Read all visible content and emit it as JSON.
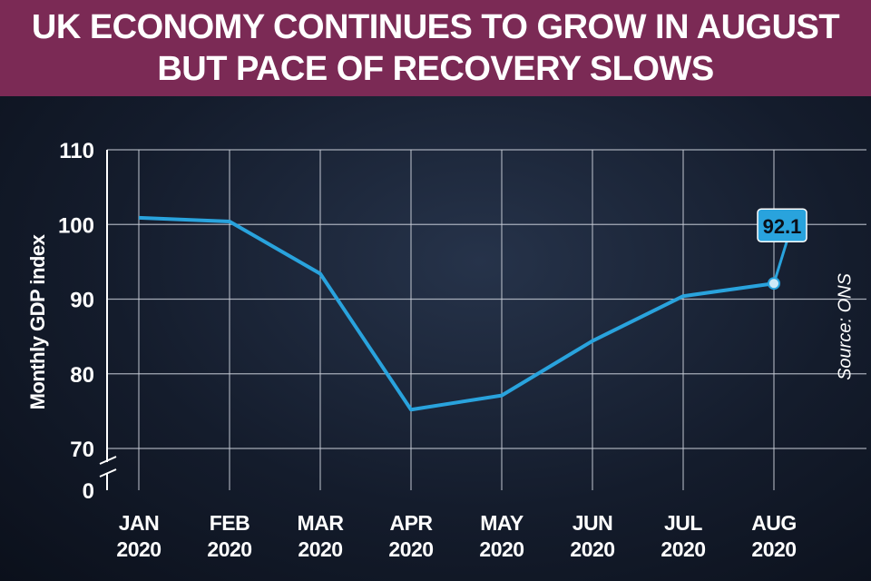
{
  "chart_data": {
    "type": "line",
    "title": "UK ECONOMY CONTINUES TO GROW IN AUGUST BUT PACE OF RECOVERY SLOWS",
    "y_label": "Monthly GDP index",
    "source": "Source: ONS",
    "categories": [
      "JAN\n2020",
      "FEB\n2020",
      "MAR\n2020",
      "APR\n2020",
      "MAY\n2020",
      "JUN\n2020",
      "JUL\n2020",
      "AUG\n2020"
    ],
    "values": [
      100.9,
      100.4,
      93.4,
      75.2,
      77.1,
      84.4,
      90.4,
      92.1
    ],
    "color": "#29a3dd",
    "ylim": [
      70,
      110
    ],
    "yticks": [
      0,
      70,
      80,
      90,
      100,
      110
    ],
    "axis_break": true,
    "grid": true,
    "labeled_point": 7
  }
}
